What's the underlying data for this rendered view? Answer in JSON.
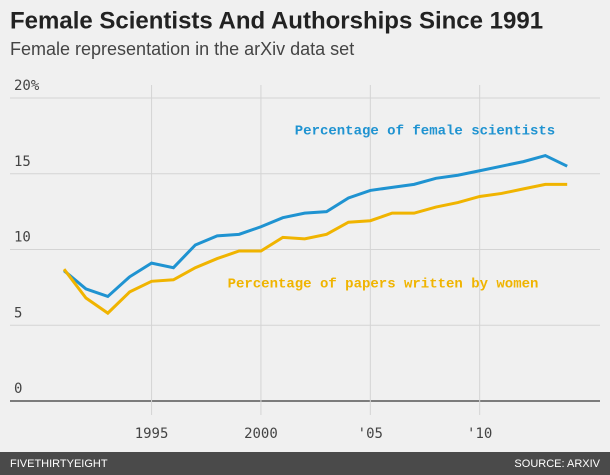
{
  "chart_data": {
    "type": "line",
    "title": "Female Scientists And Authorships Since 1991",
    "subtitle": "Female representation in the arXiv data set",
    "x": [
      1991,
      1992,
      1993,
      1994,
      1995,
      1996,
      1997,
      1998,
      1999,
      2000,
      2001,
      2002,
      2003,
      2004,
      2005,
      2006,
      2007,
      2008,
      2009,
      2010,
      2011,
      2012,
      2013,
      2014
    ],
    "series": [
      {
        "name": "Percentage of female scientists",
        "color": "#1f93d1",
        "values": [
          8.6,
          7.4,
          6.9,
          8.2,
          9.1,
          8.8,
          10.3,
          10.9,
          11.0,
          11.5,
          12.1,
          12.4,
          12.5,
          13.4,
          13.9,
          14.1,
          14.3,
          14.7,
          14.9,
          15.2,
          15.5,
          15.8,
          16.2,
          15.5
        ]
      },
      {
        "name": "Percentage of papers written by women",
        "color": "#f0b400",
        "values": [
          8.7,
          6.8,
          5.8,
          7.2,
          7.9,
          8.0,
          8.8,
          9.4,
          9.9,
          9.9,
          10.8,
          10.7,
          11.0,
          11.8,
          11.9,
          12.4,
          12.4,
          12.8,
          13.1,
          13.5,
          13.7,
          14.0,
          14.3,
          14.3
        ]
      }
    ],
    "xlim": [
      1989.9,
      2015.5
    ],
    "ylim": [
      0,
      20
    ],
    "xticks": [
      1995,
      2000,
      {
        "value": 2005,
        "label": "'05"
      },
      {
        "value": 2010,
        "label": "'10"
      }
    ],
    "yticks": [
      0,
      5,
      10,
      15,
      {
        "value": 20,
        "label": "20%"
      }
    ],
    "grid": true,
    "brand": "FIVETHIRTYEIGHT",
    "source": "SOURCE: ARXIV"
  }
}
